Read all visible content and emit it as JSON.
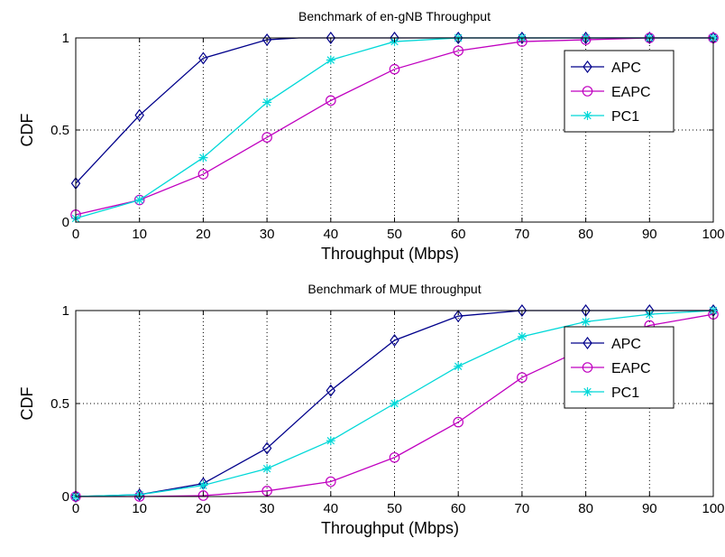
{
  "colors": {
    "APC": "#00008b",
    "EAPC": "#c000c0",
    "PC1": "#00d8d8"
  },
  "chart_data": [
    {
      "type": "line",
      "title": "Benchmark of en-gNB Throughput",
      "xlabel": "Throughput (Mbps)",
      "ylabel": "CDF",
      "xlim": [
        0,
        100
      ],
      "ylim": [
        0,
        1
      ],
      "xticks": [
        "0",
        "10",
        "20",
        "30",
        "40",
        "50",
        "60",
        "70",
        "80",
        "90",
        "100"
      ],
      "yticks": [
        "0",
        "0.5",
        "1"
      ],
      "grid": true,
      "legend_position": "top-right",
      "series": [
        {
          "name": "APC",
          "marker": "diamond",
          "x": [
            0,
            10,
            20,
            30,
            35,
            40,
            50,
            60,
            70,
            80,
            90,
            100
          ],
          "y": [
            0.21,
            0.58,
            0.89,
            0.99,
            1.0,
            1.0,
            1.0,
            1.0,
            1.0,
            1.0,
            1.0,
            1.0
          ],
          "marker_x": [
            0,
            10,
            20,
            30,
            40,
            50,
            60,
            70,
            80,
            90,
            100
          ]
        },
        {
          "name": "EAPC",
          "marker": "circle",
          "x": [
            0,
            10,
            20,
            30,
            40,
            50,
            60,
            70,
            80,
            90,
            100
          ],
          "y": [
            0.04,
            0.12,
            0.26,
            0.46,
            0.66,
            0.83,
            0.93,
            0.98,
            0.99,
            1.0,
            1.0
          ],
          "marker_x": [
            0,
            10,
            20,
            30,
            40,
            50,
            60,
            70,
            80,
            90,
            100
          ]
        },
        {
          "name": "PC1",
          "marker": "star",
          "x": [
            0,
            10,
            20,
            30,
            40,
            50,
            60,
            70,
            80,
            90,
            100
          ],
          "y": [
            0.02,
            0.12,
            0.35,
            0.65,
            0.88,
            0.98,
            1.0,
            1.0,
            1.0,
            1.0,
            1.0
          ],
          "marker_x": [
            0,
            10,
            20,
            30,
            40,
            50,
            60,
            70,
            80,
            90,
            100
          ]
        }
      ]
    },
    {
      "type": "line",
      "title": "Benchmark of MUE throughput",
      "xlabel": "Throughput (Mbps)",
      "ylabel": "CDF",
      "xlim": [
        0,
        100
      ],
      "ylim": [
        0,
        1
      ],
      "xticks": [
        "0",
        "10",
        "20",
        "30",
        "40",
        "50",
        "60",
        "70",
        "80",
        "90",
        "100"
      ],
      "yticks": [
        "0",
        "0.5",
        "1"
      ],
      "grid": true,
      "legend_position": "top-right",
      "series": [
        {
          "name": "APC",
          "marker": "diamond",
          "x": [
            0,
            10,
            20,
            30,
            40,
            50,
            60,
            70,
            80,
            90,
            100
          ],
          "y": [
            0.0,
            0.01,
            0.07,
            0.26,
            0.57,
            0.84,
            0.97,
            1.0,
            1.0,
            1.0,
            1.0
          ],
          "marker_x": [
            0,
            10,
            20,
            30,
            40,
            50,
            60,
            70,
            80,
            90,
            100
          ]
        },
        {
          "name": "EAPC",
          "marker": "circle",
          "x": [
            0,
            10,
            20,
            30,
            40,
            50,
            60,
            70,
            80,
            90,
            100
          ],
          "y": [
            0.0,
            0.0,
            0.005,
            0.03,
            0.08,
            0.21,
            0.4,
            0.64,
            0.8,
            0.92,
            0.98
          ],
          "marker_x": [
            0,
            10,
            20,
            30,
            40,
            50,
            60,
            70,
            80,
            90,
            100
          ]
        },
        {
          "name": "PC1",
          "marker": "star",
          "x": [
            0,
            10,
            20,
            30,
            40,
            50,
            60,
            70,
            80,
            90,
            100
          ],
          "y": [
            0.0,
            0.01,
            0.06,
            0.15,
            0.3,
            0.5,
            0.7,
            0.86,
            0.94,
            0.98,
            1.0
          ],
          "marker_x": [
            0,
            10,
            20,
            30,
            40,
            50,
            60,
            70,
            80,
            90,
            100
          ]
        }
      ]
    }
  ]
}
